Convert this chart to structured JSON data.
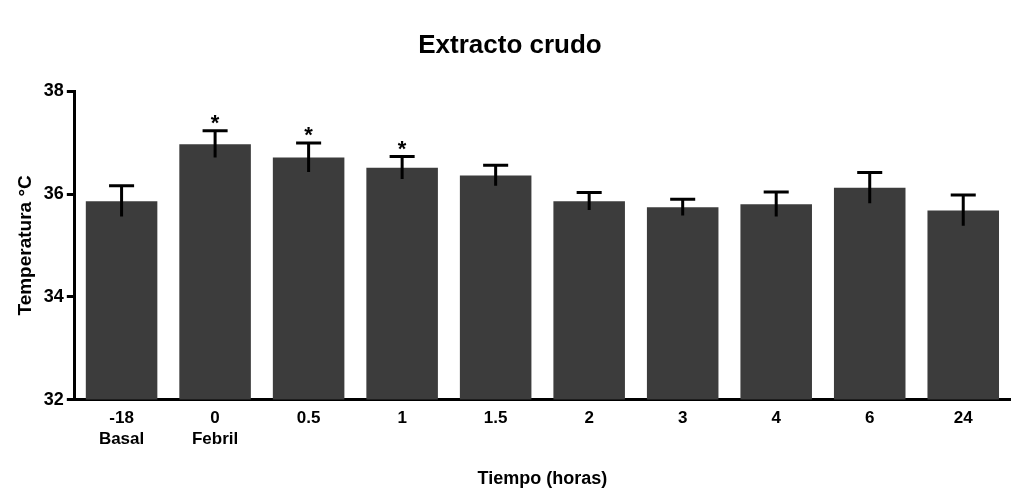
{
  "chart_data": {
    "type": "bar",
    "title": "Extracto crudo",
    "xlabel": "Tiempo (horas)",
    "ylabel": "Temperatura °C",
    "categories": [
      "-18\nBasal",
      "0\nFebril",
      "0.5",
      "1",
      "1.5",
      "2",
      "3",
      "4",
      "6",
      "24"
    ],
    "values": [
      35.86,
      36.97,
      36.71,
      36.51,
      36.36,
      35.86,
      35.74,
      35.8,
      36.12,
      35.68
    ],
    "errors": [
      0.3,
      0.26,
      0.28,
      0.22,
      0.2,
      0.17,
      0.16,
      0.24,
      0.3,
      0.3
    ],
    "color": "#3c3c3c",
    "ylim": [
      32,
      38
    ],
    "yticks": [
      32,
      34,
      36,
      38
    ],
    "grid": false,
    "legend": false,
    "annotations": [
      {
        "text": "*",
        "x": "0\nFebril",
        "y": 37.23
      },
      {
        "text": "*",
        "x": "0.5",
        "y": 36.99
      },
      {
        "text": "*",
        "x": "1",
        "y": 36.73
      }
    ]
  }
}
